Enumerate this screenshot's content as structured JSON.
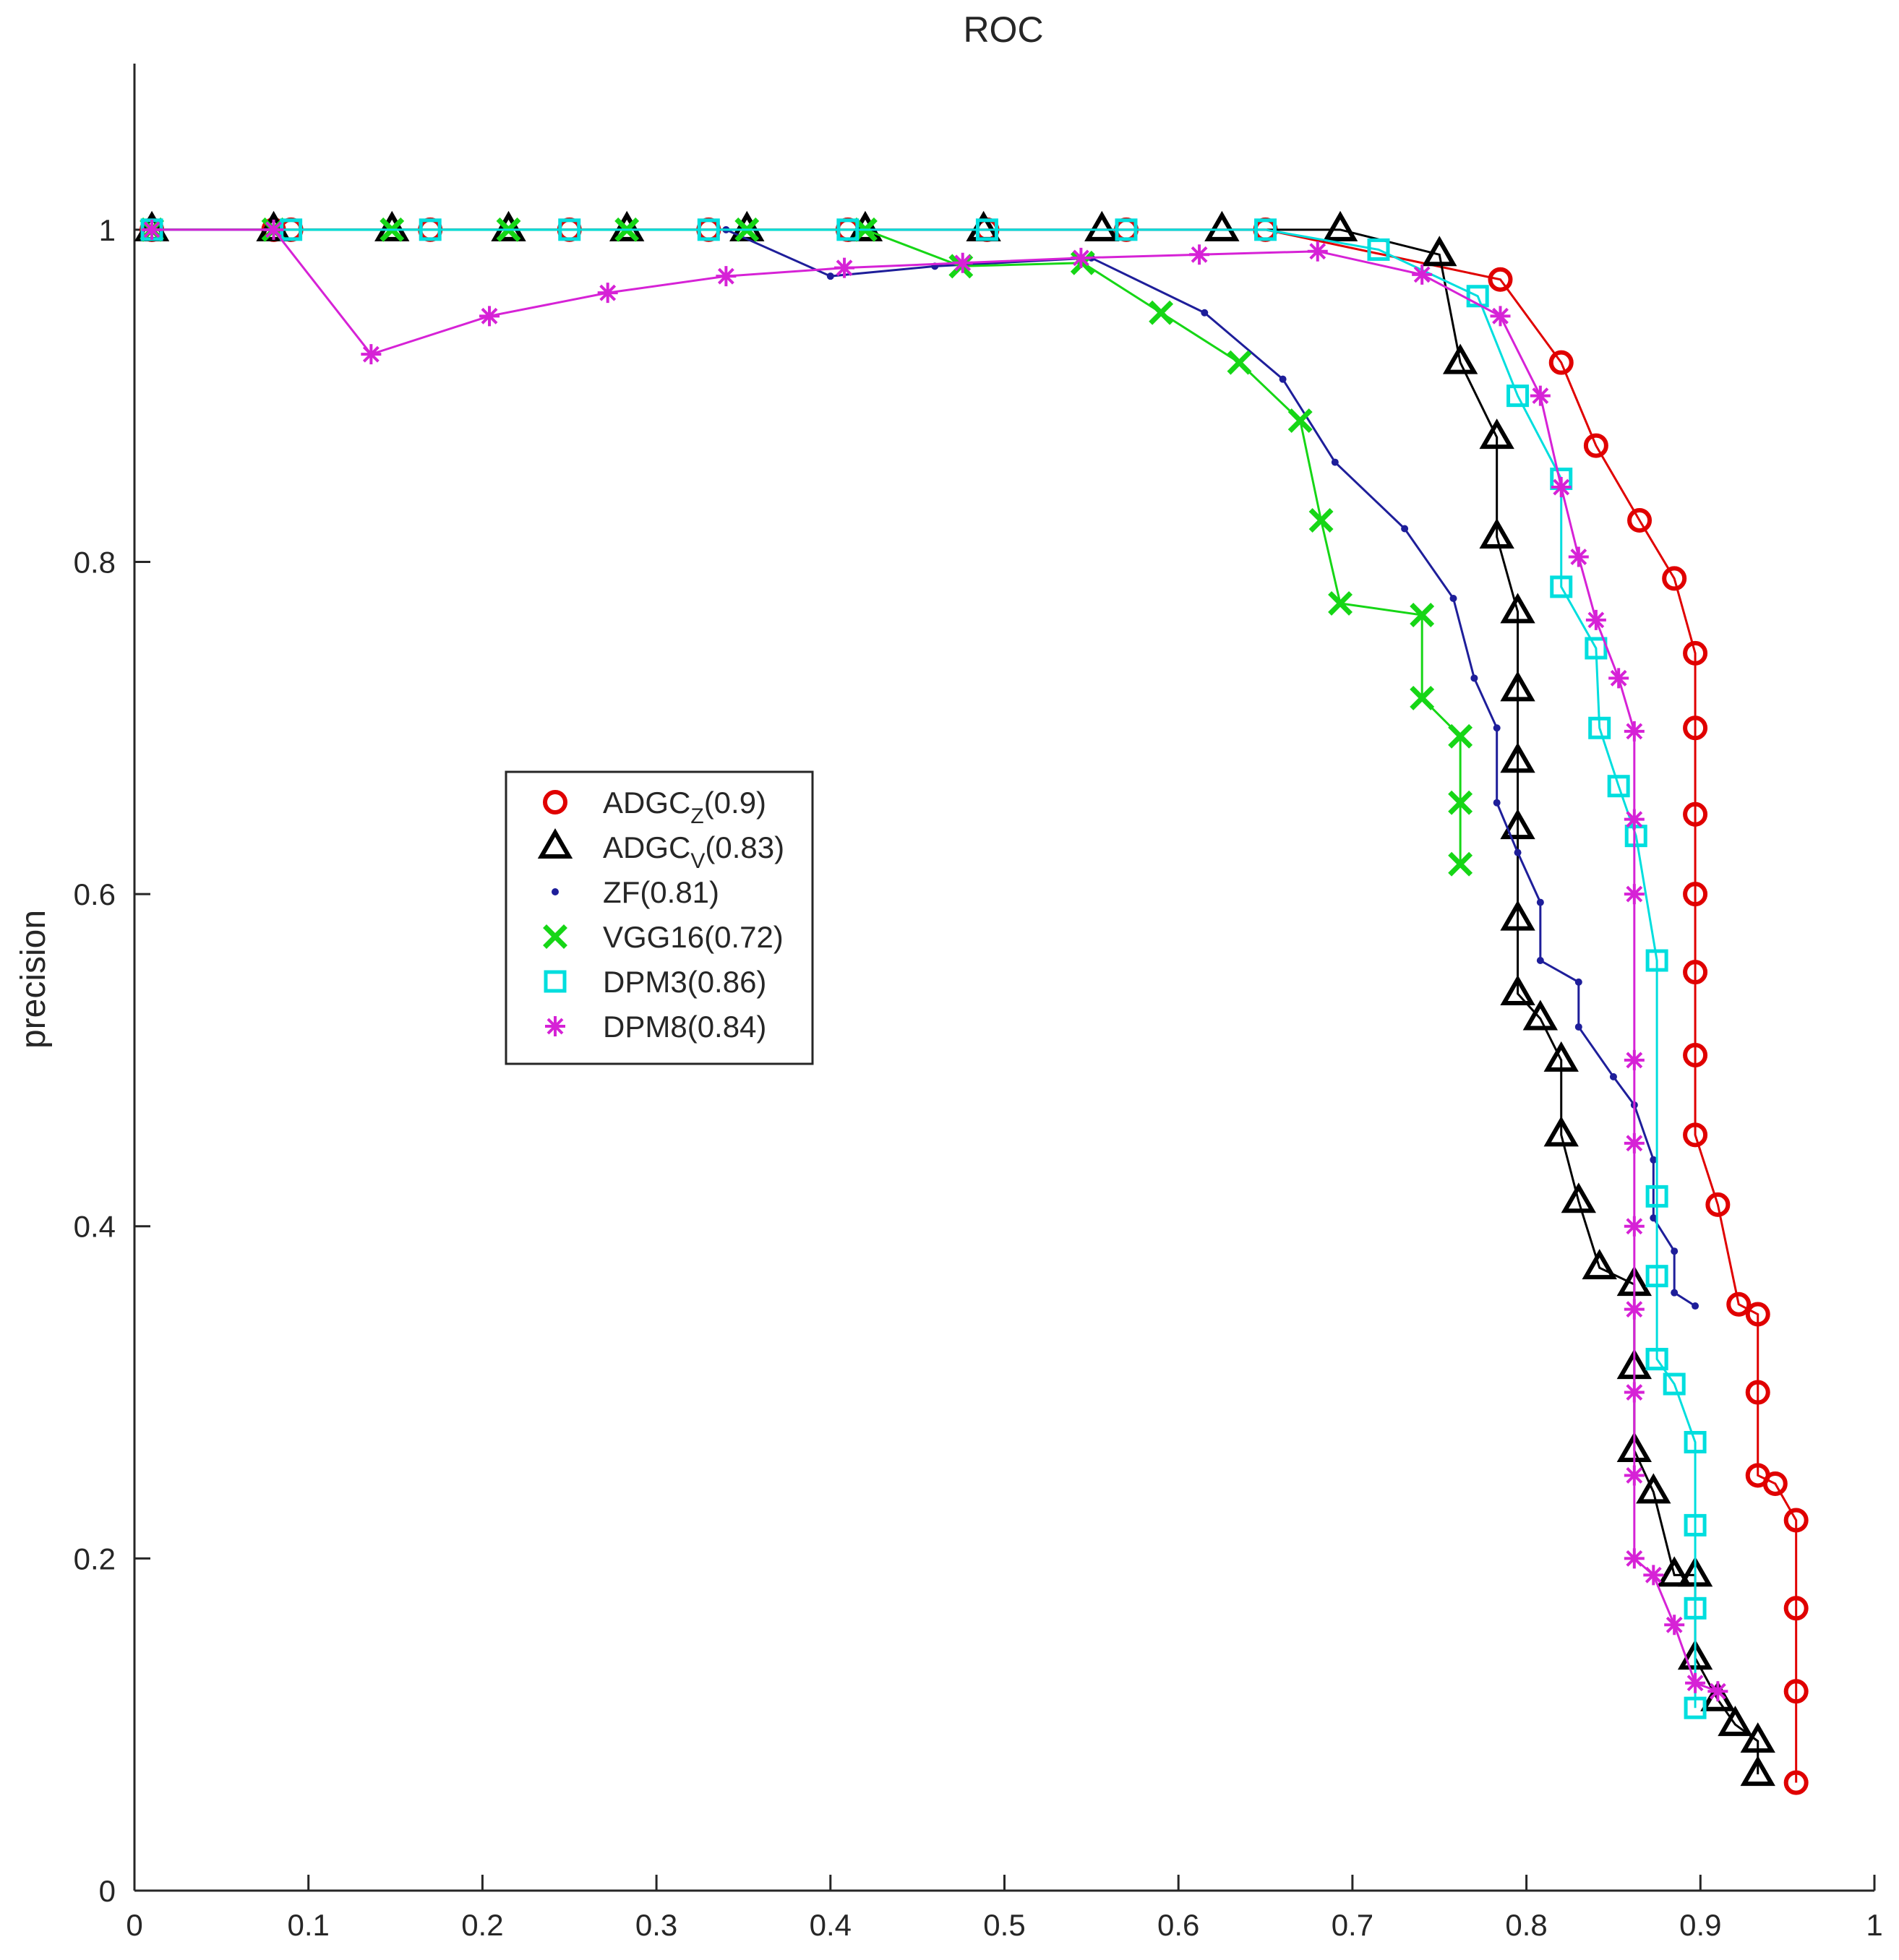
{
  "chart_data": {
    "type": "line",
    "title": "ROC",
    "xlabel": "",
    "ylabel": "precision",
    "xlim": [
      0,
      1
    ],
    "ylim": [
      0,
      1.1
    ],
    "xticks": [
      "0",
      "0.1",
      "0.2",
      "0.3",
      "0.4",
      "0.5",
      "0.6",
      "0.7",
      "0.8",
      "0.9",
      "1"
    ],
    "yticks": [
      "0",
      "0.2",
      "0.4",
      "0.6",
      "0.8",
      "1"
    ],
    "legend_position": "middle-left",
    "series": [
      {
        "name": "ADGCZ(0.9)",
        "label_base": "ADGC",
        "label_sub": "Z",
        "label_suffix": "(0.9)",
        "color": "#e00000",
        "marker": "circle",
        "x": [
          0.01,
          0.08,
          0.09,
          0.17,
          0.25,
          0.33,
          0.41,
          0.49,
          0.57,
          0.65,
          0.785,
          0.82,
          0.84,
          0.865,
          0.885,
          0.897,
          0.897,
          0.897,
          0.897,
          0.897,
          0.897,
          0.897,
          0.91,
          0.922,
          0.933,
          0.933,
          0.933,
          0.943,
          0.955,
          0.955,
          0.955,
          0.955
        ],
        "y": [
          1.0,
          1.0,
          1.0,
          1.0,
          1.0,
          1.0,
          1.0,
          1.0,
          1.0,
          1.0,
          0.97,
          0.92,
          0.87,
          0.825,
          0.79,
          0.745,
          0.7,
          0.648,
          0.6,
          0.553,
          0.503,
          0.455,
          0.413,
          0.353,
          0.347,
          0.3,
          0.25,
          0.245,
          0.223,
          0.17,
          0.12,
          0.065
        ]
      },
      {
        "name": "ADGCV(0.83)",
        "label_base": "ADGC",
        "label_sub": "V",
        "label_suffix": "(0.83)",
        "color": "#000000",
        "marker": "triangle",
        "x": [
          0.01,
          0.08,
          0.148,
          0.215,
          0.283,
          0.352,
          0.42,
          0.488,
          0.556,
          0.625,
          0.693,
          0.75,
          0.762,
          0.783,
          0.783,
          0.795,
          0.795,
          0.795,
          0.795,
          0.795,
          0.795,
          0.808,
          0.82,
          0.82,
          0.83,
          0.842,
          0.862,
          0.862,
          0.862,
          0.873,
          0.885,
          0.897,
          0.897,
          0.91,
          0.92,
          0.933,
          0.933
        ],
        "y": [
          1.0,
          1.0,
          1.0,
          1.0,
          1.0,
          1.0,
          1.0,
          1.0,
          1.0,
          1.0,
          1.0,
          0.985,
          0.92,
          0.875,
          0.815,
          0.77,
          0.723,
          0.68,
          0.64,
          0.585,
          0.54,
          0.525,
          0.5,
          0.455,
          0.415,
          0.375,
          0.365,
          0.315,
          0.265,
          0.24,
          0.19,
          0.19,
          0.14,
          0.115,
          0.1,
          0.09,
          0.07
        ]
      },
      {
        "name": "ZF(0.81)",
        "label_base": "ZF",
        "label_sub": "",
        "label_suffix": "(0.81)",
        "color": "#1e1e9a",
        "marker": "dot",
        "x": [
          0.01,
          0.08,
          0.34,
          0.4,
          0.46,
          0.55,
          0.615,
          0.66,
          0.69,
          0.73,
          0.758,
          0.77,
          0.783,
          0.783,
          0.795,
          0.808,
          0.808,
          0.83,
          0.83,
          0.85,
          0.862,
          0.873,
          0.873,
          0.885,
          0.885,
          0.897
        ],
        "y": [
          1.0,
          1.0,
          1.0,
          0.972,
          0.978,
          0.983,
          0.95,
          0.91,
          0.86,
          0.82,
          0.778,
          0.73,
          0.7,
          0.655,
          0.625,
          0.595,
          0.56,
          0.547,
          0.52,
          0.49,
          0.473,
          0.44,
          0.405,
          0.385,
          0.36,
          0.352
        ]
      },
      {
        "name": "VGG16(0.72)",
        "label_base": "VGG16",
        "label_sub": "",
        "label_suffix": "(0.72)",
        "color": "#16d616",
        "marker": "x",
        "x": [
          0.01,
          0.08,
          0.148,
          0.215,
          0.283,
          0.352,
          0.42,
          0.475,
          0.545,
          0.59,
          0.635,
          0.67,
          0.682,
          0.693,
          0.74,
          0.74,
          0.762,
          0.762,
          0.762
        ],
        "y": [
          1.0,
          1.0,
          1.0,
          1.0,
          1.0,
          1.0,
          1.0,
          0.978,
          0.98,
          0.95,
          0.92,
          0.885,
          0.825,
          0.775,
          0.768,
          0.718,
          0.695,
          0.655,
          0.618
        ]
      },
      {
        "name": "DPM3(0.86)",
        "label_base": "DPM3",
        "label_sub": "",
        "label_suffix": "(0.86)",
        "color": "#00dede",
        "marker": "square",
        "x": [
          0.01,
          0.09,
          0.17,
          0.25,
          0.33,
          0.41,
          0.49,
          0.57,
          0.65,
          0.715,
          0.772,
          0.795,
          0.82,
          0.82,
          0.84,
          0.842,
          0.853,
          0.863,
          0.875,
          0.875,
          0.875,
          0.875,
          0.875,
          0.885,
          0.897,
          0.897,
          0.897,
          0.897
        ],
        "y": [
          1.0,
          1.0,
          1.0,
          1.0,
          1.0,
          1.0,
          1.0,
          1.0,
          1.0,
          0.988,
          0.96,
          0.9,
          0.85,
          0.785,
          0.748,
          0.7,
          0.665,
          0.635,
          0.56,
          0.418,
          0.37,
          0.32,
          0.32,
          0.305,
          0.27,
          0.22,
          0.17,
          0.11
        ]
      },
      {
        "name": "DPM8(0.84)",
        "label_base": "DPM8",
        "label_sub": "",
        "label_suffix": "(0.84)",
        "color": "#d622d6",
        "marker": "star",
        "x": [
          0.01,
          0.08,
          0.136,
          0.204,
          0.272,
          0.34,
          0.408,
          0.476,
          0.544,
          0.612,
          0.68,
          0.74,
          0.785,
          0.808,
          0.82,
          0.83,
          0.84,
          0.853,
          0.862,
          0.862,
          0.862,
          0.862,
          0.862,
          0.862,
          0.862,
          0.862,
          0.862,
          0.862,
          0.873,
          0.885,
          0.897,
          0.91
        ],
        "y": [
          1.0,
          1.0,
          0.925,
          0.948,
          0.962,
          0.972,
          0.977,
          0.98,
          0.983,
          0.985,
          0.987,
          0.973,
          0.948,
          0.9,
          0.845,
          0.803,
          0.765,
          0.73,
          0.698,
          0.645,
          0.6,
          0.5,
          0.45,
          0.4,
          0.35,
          0.3,
          0.25,
          0.2,
          0.19,
          0.16,
          0.125,
          0.12
        ]
      }
    ]
  }
}
